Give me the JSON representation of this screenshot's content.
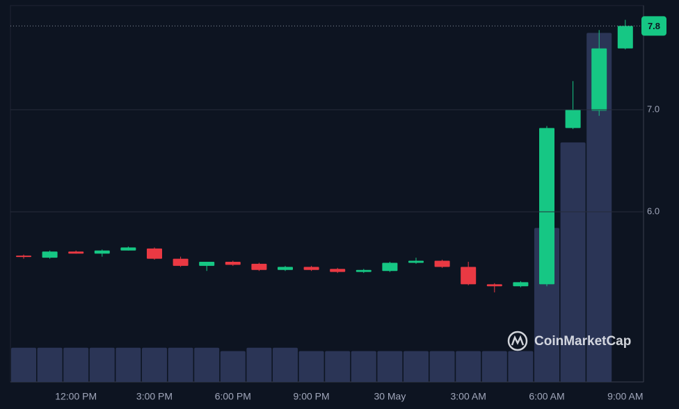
{
  "chart_data": {
    "type": "candlestick",
    "categories": [
      null,
      null,
      "12:00 PM",
      null,
      null,
      "3:00 PM",
      null,
      null,
      "6:00 PM",
      null,
      null,
      "9:00 PM",
      null,
      null,
      "30 May",
      null,
      null,
      "3:00 AM",
      null,
      null,
      "6:00 AM",
      null,
      null,
      "9:00 AM"
    ],
    "open": [
      5.57,
      5.55,
      5.61,
      5.59,
      5.62,
      5.64,
      5.54,
      5.47,
      5.51,
      5.49,
      5.43,
      5.46,
      5.44,
      5.41,
      5.42,
      5.5,
      5.52,
      5.46,
      5.29,
      5.27,
      5.29,
      6.82,
      6.99,
      7.6
    ],
    "high": [
      5.58,
      5.62,
      5.62,
      5.63,
      5.66,
      5.65,
      5.56,
      5.51,
      5.52,
      5.5,
      5.47,
      5.47,
      5.45,
      5.44,
      5.51,
      5.55,
      5.53,
      5.51,
      5.3,
      5.32,
      6.84,
      7.28,
      7.78,
      7.88
    ],
    "low": [
      5.54,
      5.54,
      5.59,
      5.56,
      5.62,
      5.53,
      5.46,
      5.42,
      5.47,
      5.42,
      5.42,
      5.42,
      5.4,
      5.4,
      5.41,
      5.49,
      5.45,
      5.28,
      5.21,
      5.26,
      5.27,
      6.81,
      6.94,
      7.59
    ],
    "close": [
      5.56,
      5.61,
      5.59,
      5.62,
      5.65,
      5.54,
      5.47,
      5.51,
      5.48,
      5.43,
      5.46,
      5.43,
      5.41,
      5.43,
      5.5,
      5.52,
      5.46,
      5.29,
      5.27,
      5.31,
      6.82,
      7.0,
      7.6,
      7.82
    ],
    "volume": [
      10,
      10,
      10,
      10,
      10,
      10,
      10,
      10,
      9,
      10,
      10,
      9,
      9,
      9,
      9,
      9,
      9,
      9,
      9,
      9,
      45,
      70,
      102,
      0
    ],
    "volume_ylim": [
      0,
      110
    ],
    "up_color": "#16c784",
    "down_color": "#ea3943",
    "volume_color": "#2b3556",
    "ylim": [
      4.333,
      8.02
    ],
    "yticks": [
      {
        "value": 6,
        "label": "6.0"
      },
      {
        "value": 7,
        "label": "7.0"
      }
    ],
    "grid": true,
    "last_price": {
      "value": 7.82,
      "label": "7.8"
    },
    "watermark": "CoinMarketCap"
  }
}
